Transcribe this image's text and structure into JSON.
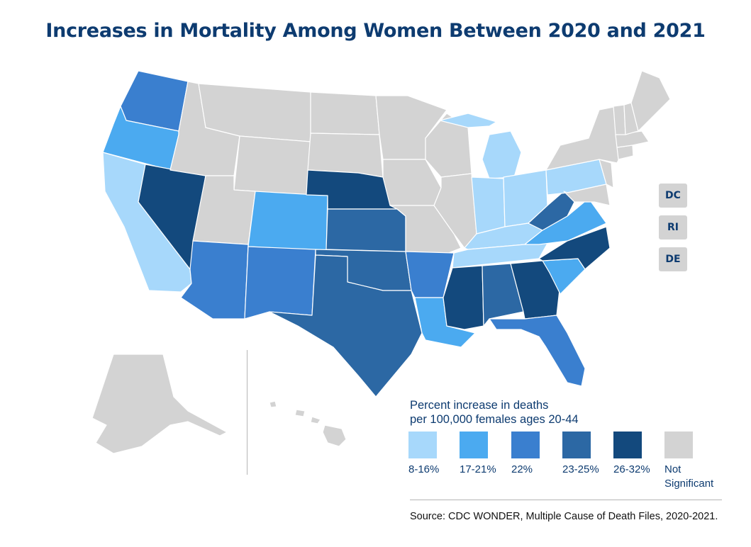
{
  "title": "Increases in Mortality Among Women Between 2020 and 2021",
  "colors": {
    "c8_16": "#a7d8fb",
    "c17_21": "#4baaf0",
    "c22": "#3a7fcf",
    "c23_25": "#2c68a4",
    "c26_32": "#13497d",
    "ns": "#d3d3d3"
  },
  "small_states": [
    {
      "abbr": "DC",
      "category": "ns"
    },
    {
      "abbr": "RI",
      "category": "ns"
    },
    {
      "abbr": "DE",
      "category": "ns"
    }
  ],
  "legend": {
    "title_line1": "Percent increase in deaths",
    "title_line2": "per 100,000 females ages 20-44",
    "items": [
      {
        "key": "c8_16",
        "label": "8-16%"
      },
      {
        "key": "c17_21",
        "label": "17-21%"
      },
      {
        "key": "c22",
        "label": "22%"
      },
      {
        "key": "c23_25",
        "label": "23-25%"
      },
      {
        "key": "c26_32",
        "label": "26-32%"
      },
      {
        "key": "ns",
        "label": "Not Significant"
      }
    ]
  },
  "states": [
    {
      "abbr": "WA",
      "category": "c22"
    },
    {
      "abbr": "OR",
      "category": "c17_21"
    },
    {
      "abbr": "CA",
      "category": "c8_16"
    },
    {
      "abbr": "NV",
      "category": "c26_32"
    },
    {
      "abbr": "ID",
      "category": "ns"
    },
    {
      "abbr": "MT",
      "category": "ns"
    },
    {
      "abbr": "WY",
      "category": "ns"
    },
    {
      "abbr": "UT",
      "category": "ns"
    },
    {
      "abbr": "AZ",
      "category": "c22"
    },
    {
      "abbr": "CO",
      "category": "c17_21"
    },
    {
      "abbr": "NM",
      "category": "c22"
    },
    {
      "abbr": "ND",
      "category": "ns"
    },
    {
      "abbr": "SD",
      "category": "ns"
    },
    {
      "abbr": "NE",
      "category": "c26_32"
    },
    {
      "abbr": "KS",
      "category": "c23_25"
    },
    {
      "abbr": "OK",
      "category": "c23_25"
    },
    {
      "abbr": "TX",
      "category": "c23_25"
    },
    {
      "abbr": "MN",
      "category": "ns"
    },
    {
      "abbr": "IA",
      "category": "ns"
    },
    {
      "abbr": "MO",
      "category": "ns"
    },
    {
      "abbr": "AR",
      "category": "c22"
    },
    {
      "abbr": "LA",
      "category": "c17_21"
    },
    {
      "abbr": "WI",
      "category": "ns"
    },
    {
      "abbr": "IL",
      "category": "ns"
    },
    {
      "abbr": "MI",
      "category": "c8_16"
    },
    {
      "abbr": "IN",
      "category": "c8_16"
    },
    {
      "abbr": "OH",
      "category": "c8_16"
    },
    {
      "abbr": "KY",
      "category": "c8_16"
    },
    {
      "abbr": "TN",
      "category": "c8_16"
    },
    {
      "abbr": "MS",
      "category": "c26_32"
    },
    {
      "abbr": "AL",
      "category": "c23_25"
    },
    {
      "abbr": "GA",
      "category": "c26_32"
    },
    {
      "abbr": "FL",
      "category": "c22"
    },
    {
      "abbr": "SC",
      "category": "c17_21"
    },
    {
      "abbr": "NC",
      "category": "c26_32"
    },
    {
      "abbr": "VA",
      "category": "c17_21"
    },
    {
      "abbr": "WV",
      "category": "c23_25"
    },
    {
      "abbr": "PA",
      "category": "c8_16"
    },
    {
      "abbr": "NY",
      "category": "ns"
    },
    {
      "abbr": "NJ",
      "category": "ns"
    },
    {
      "abbr": "MD",
      "category": "ns"
    },
    {
      "abbr": "CT",
      "category": "ns"
    },
    {
      "abbr": "MA",
      "category": "ns"
    },
    {
      "abbr": "VT",
      "category": "ns"
    },
    {
      "abbr": "NH",
      "category": "ns"
    },
    {
      "abbr": "ME",
      "category": "ns"
    },
    {
      "abbr": "AK",
      "category": "ns"
    },
    {
      "abbr": "HI",
      "category": "ns"
    }
  ],
  "source": "Source: CDC WONDER, Multiple Cause of Death Files, 2020-2021."
}
